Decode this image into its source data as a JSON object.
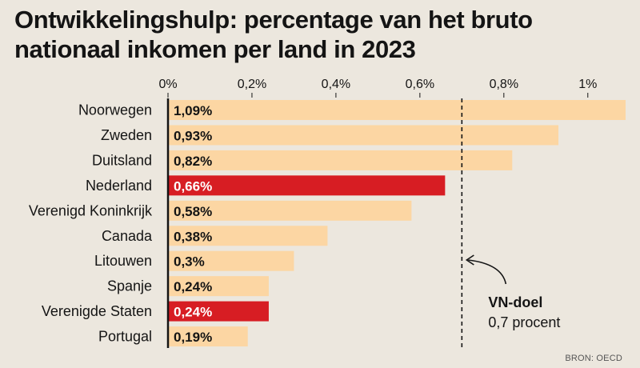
{
  "title": "Ontwikkelingshulp: percentage van het bruto nationaal inkomen per land in 2023",
  "source": "BRON: OECD",
  "colors": {
    "bar": "#fcd6a3",
    "highlight": "#d71d23",
    "text": "#141414",
    "background": "#ece7de"
  },
  "chart_data": {
    "type": "bar",
    "orientation": "horizontal",
    "title": "Ontwikkelingshulp: percentage van het bruto nationaal inkomen per land in 2023",
    "xlim": [
      0,
      1.09
    ],
    "x_ticks": [
      0,
      0.2,
      0.4,
      0.6,
      0.8,
      1.0
    ],
    "x_tick_labels": [
      "0%",
      "0,2%",
      "0,4%",
      "0,6%",
      "0,8%",
      "1%"
    ],
    "categories": [
      "Noorwegen",
      "Zweden",
      "Duitsland",
      "Nederland",
      "Verenigd Koninkrijk",
      "Canada",
      "Litouwen",
      "Spanje",
      "Verenigde Staten",
      "Portugal"
    ],
    "values": [
      1.09,
      0.93,
      0.82,
      0.66,
      0.58,
      0.38,
      0.3,
      0.24,
      0.24,
      0.19
    ],
    "value_labels": [
      "1,09%",
      "0,93%",
      "0,82%",
      "0,66%",
      "0,58%",
      "0,38%",
      "0,3%",
      "0,24%",
      "0,24%",
      "0,19%"
    ],
    "highlighted": [
      "Nederland",
      "Verenigde Staten"
    ],
    "reference_line": {
      "value": 0.7,
      "label": "VN-doel",
      "sublabel": "0,7 procent"
    }
  }
}
